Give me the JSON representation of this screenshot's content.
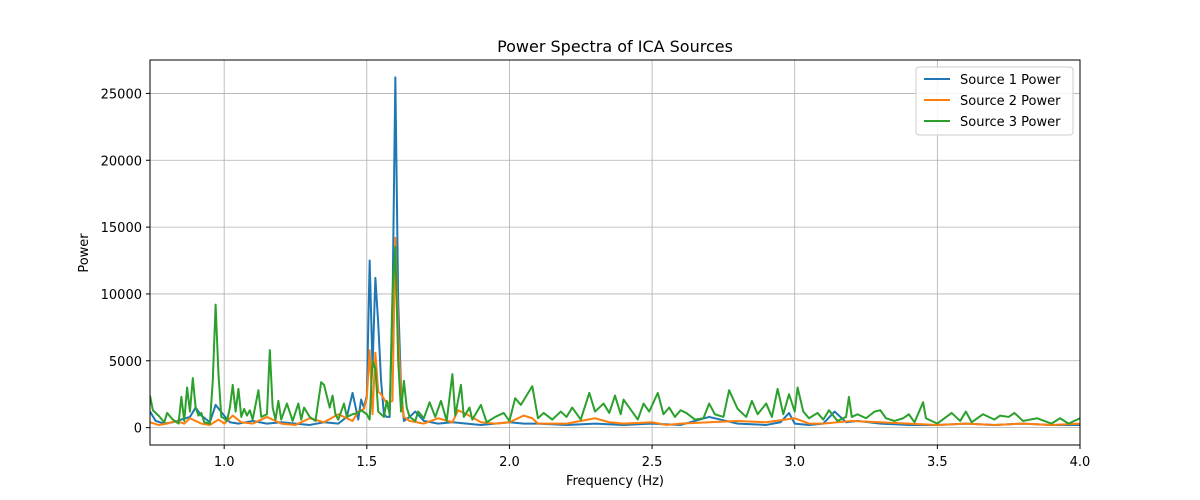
{
  "chart_data": {
    "type": "line",
    "title": "Power Spectra of ICA Sources",
    "xlabel": "Frequency (Hz)",
    "ylabel": "Power",
    "xlim": [
      0.74,
      4.0
    ],
    "ylim": [
      -1300,
      27500
    ],
    "xticks": [
      1.0,
      1.5,
      2.0,
      2.5,
      3.0,
      3.5,
      4.0
    ],
    "xtick_labels": [
      "1.0",
      "1.5",
      "2.0",
      "2.5",
      "3.0",
      "3.5",
      "4.0"
    ],
    "yticks": [
      0,
      5000,
      10000,
      15000,
      20000,
      25000
    ],
    "ytick_labels": [
      "0",
      "5000",
      "10000",
      "15000",
      "20000",
      "25000"
    ],
    "grid": true,
    "legend_position": "top-right",
    "series": [
      {
        "name": "Source 1 Power",
        "color": "#1f77b4",
        "points": [
          [
            0.74,
            1200
          ],
          [
            0.76,
            500
          ],
          [
            0.79,
            300
          ],
          [
            0.82,
            400
          ],
          [
            0.85,
            600
          ],
          [
            0.88,
            800
          ],
          [
            0.9,
            1500
          ],
          [
            0.92,
            900
          ],
          [
            0.95,
            400
          ],
          [
            0.97,
            1700
          ],
          [
            1.0,
            900
          ],
          [
            1.02,
            400
          ],
          [
            1.05,
            300
          ],
          [
            1.1,
            500
          ],
          [
            1.15,
            300
          ],
          [
            1.2,
            400
          ],
          [
            1.25,
            300
          ],
          [
            1.3,
            200
          ],
          [
            1.35,
            400
          ],
          [
            1.4,
            300
          ],
          [
            1.43,
            800
          ],
          [
            1.45,
            2600
          ],
          [
            1.47,
            600
          ],
          [
            1.48,
            2100
          ],
          [
            1.49,
            1500
          ],
          [
            1.5,
            2400
          ],
          [
            1.51,
            12500
          ],
          [
            1.52,
            4500
          ],
          [
            1.53,
            11200
          ],
          [
            1.54,
            7800
          ],
          [
            1.55,
            3500
          ],
          [
            1.56,
            1000
          ],
          [
            1.57,
            800
          ],
          [
            1.58,
            800
          ],
          [
            1.59,
            9000
          ],
          [
            1.6,
            26200
          ],
          [
            1.61,
            9500
          ],
          [
            1.62,
            3000
          ],
          [
            1.63,
            500
          ],
          [
            1.65,
            800
          ],
          [
            1.67,
            1200
          ],
          [
            1.7,
            500
          ],
          [
            1.75,
            300
          ],
          [
            1.8,
            400
          ],
          [
            1.85,
            300
          ],
          [
            1.9,
            200
          ],
          [
            1.95,
            300
          ],
          [
            2.0,
            400
          ],
          [
            2.05,
            300
          ],
          [
            2.1,
            300
          ],
          [
            2.2,
            200
          ],
          [
            2.3,
            300
          ],
          [
            2.4,
            200
          ],
          [
            2.5,
            300
          ],
          [
            2.6,
            200
          ],
          [
            2.7,
            800
          ],
          [
            2.8,
            300
          ],
          [
            2.9,
            200
          ],
          [
            2.95,
            400
          ],
          [
            2.98,
            1100
          ],
          [
            3.0,
            300
          ],
          [
            3.05,
            200
          ],
          [
            3.1,
            300
          ],
          [
            3.14,
            1200
          ],
          [
            3.18,
            400
          ],
          [
            3.22,
            500
          ],
          [
            3.3,
            300
          ],
          [
            3.4,
            200
          ],
          [
            3.5,
            200
          ],
          [
            3.6,
            300
          ],
          [
            3.7,
            200
          ],
          [
            3.8,
            300
          ],
          [
            3.9,
            200
          ],
          [
            4.0,
            200
          ]
        ]
      },
      {
        "name": "Source 2 Power",
        "color": "#ff7f0e",
        "points": [
          [
            0.74,
            400
          ],
          [
            0.77,
            200
          ],
          [
            0.8,
            300
          ],
          [
            0.83,
            500
          ],
          [
            0.86,
            300
          ],
          [
            0.88,
            700
          ],
          [
            0.9,
            500
          ],
          [
            0.92,
            300
          ],
          [
            0.95,
            200
          ],
          [
            0.98,
            600
          ],
          [
            1.0,
            300
          ],
          [
            1.03,
            900
          ],
          [
            1.06,
            400
          ],
          [
            1.1,
            300
          ],
          [
            1.15,
            800
          ],
          [
            1.2,
            300
          ],
          [
            1.25,
            200
          ],
          [
            1.3,
            700
          ],
          [
            1.35,
            400
          ],
          [
            1.4,
            1000
          ],
          [
            1.45,
            500
          ],
          [
            1.47,
            1200
          ],
          [
            1.49,
            1400
          ],
          [
            1.5,
            2200
          ],
          [
            1.51,
            5800
          ],
          [
            1.52,
            1000
          ],
          [
            1.53,
            5600
          ],
          [
            1.54,
            2700
          ],
          [
            1.55,
            2500
          ],
          [
            1.57,
            1800
          ],
          [
            1.59,
            2000
          ],
          [
            1.6,
            14200
          ],
          [
            1.61,
            7000
          ],
          [
            1.62,
            2500
          ],
          [
            1.63,
            800
          ],
          [
            1.65,
            500
          ],
          [
            1.7,
            300
          ],
          [
            1.75,
            700
          ],
          [
            1.8,
            400
          ],
          [
            1.82,
            1300
          ],
          [
            1.85,
            1000
          ],
          [
            1.9,
            400
          ],
          [
            1.95,
            300
          ],
          [
            2.0,
            400
          ],
          [
            2.05,
            900
          ],
          [
            2.08,
            700
          ],
          [
            2.1,
            300
          ],
          [
            2.2,
            300
          ],
          [
            2.3,
            700
          ],
          [
            2.35,
            400
          ],
          [
            2.4,
            300
          ],
          [
            2.5,
            400
          ],
          [
            2.55,
            200
          ],
          [
            2.6,
            300
          ],
          [
            2.7,
            400
          ],
          [
            2.8,
            500
          ],
          [
            2.9,
            400
          ],
          [
            3.0,
            700
          ],
          [
            3.05,
            300
          ],
          [
            3.1,
            300
          ],
          [
            3.2,
            500
          ],
          [
            3.3,
            400
          ],
          [
            3.4,
            300
          ],
          [
            3.5,
            200
          ],
          [
            3.6,
            300
          ],
          [
            3.7,
            200
          ],
          [
            3.8,
            300
          ],
          [
            3.9,
            200
          ],
          [
            4.0,
            300
          ]
        ]
      },
      {
        "name": "Source 3 Power",
        "color": "#2ca02c",
        "points": [
          [
            0.74,
            2400
          ],
          [
            0.75,
            1300
          ],
          [
            0.77,
            900
          ],
          [
            0.79,
            400
          ],
          [
            0.8,
            1100
          ],
          [
            0.82,
            600
          ],
          [
            0.84,
            300
          ],
          [
            0.85,
            2300
          ],
          [
            0.86,
            500
          ],
          [
            0.87,
            3000
          ],
          [
            0.88,
            1200
          ],
          [
            0.89,
            3700
          ],
          [
            0.9,
            1500
          ],
          [
            0.91,
            900
          ],
          [
            0.92,
            1100
          ],
          [
            0.93,
            400
          ],
          [
            0.95,
            300
          ],
          [
            0.96,
            3500
          ],
          [
            0.97,
            9200
          ],
          [
            0.98,
            4000
          ],
          [
            0.99,
            800
          ],
          [
            1.0,
            700
          ],
          [
            1.01,
            500
          ],
          [
            1.02,
            1500
          ],
          [
            1.03,
            3200
          ],
          [
            1.04,
            1200
          ],
          [
            1.05,
            2900
          ],
          [
            1.06,
            800
          ],
          [
            1.07,
            1400
          ],
          [
            1.08,
            900
          ],
          [
            1.09,
            1300
          ],
          [
            1.1,
            600
          ],
          [
            1.12,
            2800
          ],
          [
            1.13,
            800
          ],
          [
            1.15,
            1000
          ],
          [
            1.16,
            5800
          ],
          [
            1.17,
            1500
          ],
          [
            1.18,
            600
          ],
          [
            1.19,
            2000
          ],
          [
            1.2,
            600
          ],
          [
            1.22,
            1800
          ],
          [
            1.24,
            500
          ],
          [
            1.26,
            1800
          ],
          [
            1.27,
            600
          ],
          [
            1.28,
            1500
          ],
          [
            1.3,
            800
          ],
          [
            1.32,
            500
          ],
          [
            1.34,
            3400
          ],
          [
            1.35,
            3200
          ],
          [
            1.37,
            1500
          ],
          [
            1.38,
            2400
          ],
          [
            1.39,
            1000
          ],
          [
            1.4,
            600
          ],
          [
            1.42,
            1800
          ],
          [
            1.43,
            800
          ],
          [
            1.45,
            1000
          ],
          [
            1.47,
            1100
          ],
          [
            1.48,
            1300
          ],
          [
            1.5,
            1000
          ],
          [
            1.51,
            600
          ],
          [
            1.52,
            5000
          ],
          [
            1.53,
            4400
          ],
          [
            1.54,
            1200
          ],
          [
            1.55,
            1000
          ],
          [
            1.56,
            800
          ],
          [
            1.57,
            2000
          ],
          [
            1.58,
            1000
          ],
          [
            1.59,
            10000
          ],
          [
            1.6,
            13500
          ],
          [
            1.61,
            5000
          ],
          [
            1.62,
            1200
          ],
          [
            1.63,
            3500
          ],
          [
            1.64,
            1500
          ],
          [
            1.65,
            800
          ],
          [
            1.67,
            500
          ],
          [
            1.68,
            1200
          ],
          [
            1.7,
            700
          ],
          [
            1.72,
            1900
          ],
          [
            1.74,
            800
          ],
          [
            1.76,
            2000
          ],
          [
            1.78,
            500
          ],
          [
            1.8,
            4000
          ],
          [
            1.81,
            900
          ],
          [
            1.83,
            3200
          ],
          [
            1.84,
            800
          ],
          [
            1.86,
            1500
          ],
          [
            1.87,
            600
          ],
          [
            1.9,
            1700
          ],
          [
            1.92,
            400
          ],
          [
            1.95,
            800
          ],
          [
            1.98,
            1100
          ],
          [
            2.0,
            500
          ],
          [
            2.02,
            2200
          ],
          [
            2.04,
            1700
          ],
          [
            2.06,
            2400
          ],
          [
            2.08,
            3100
          ],
          [
            2.1,
            700
          ],
          [
            2.12,
            1100
          ],
          [
            2.15,
            600
          ],
          [
            2.18,
            1200
          ],
          [
            2.2,
            800
          ],
          [
            2.22,
            1500
          ],
          [
            2.25,
            600
          ],
          [
            2.28,
            2600
          ],
          [
            2.3,
            1200
          ],
          [
            2.33,
            1800
          ],
          [
            2.35,
            1100
          ],
          [
            2.37,
            2400
          ],
          [
            2.39,
            1000
          ],
          [
            2.4,
            2100
          ],
          [
            2.42,
            1500
          ],
          [
            2.45,
            600
          ],
          [
            2.47,
            1800
          ],
          [
            2.49,
            1200
          ],
          [
            2.52,
            2600
          ],
          [
            2.54,
            1000
          ],
          [
            2.56,
            1500
          ],
          [
            2.58,
            800
          ],
          [
            2.6,
            1300
          ],
          [
            2.62,
            1100
          ],
          [
            2.65,
            600
          ],
          [
            2.68,
            700
          ],
          [
            2.7,
            1800
          ],
          [
            2.72,
            1000
          ],
          [
            2.75,
            800
          ],
          [
            2.77,
            2800
          ],
          [
            2.8,
            1400
          ],
          [
            2.83,
            800
          ],
          [
            2.85,
            2000
          ],
          [
            2.87,
            1000
          ],
          [
            2.9,
            1800
          ],
          [
            2.92,
            800
          ],
          [
            2.94,
            2900
          ],
          [
            2.96,
            1000
          ],
          [
            2.98,
            2500
          ],
          [
            3.0,
            1200
          ],
          [
            3.01,
            3000
          ],
          [
            3.03,
            1200
          ],
          [
            3.05,
            700
          ],
          [
            3.08,
            1100
          ],
          [
            3.1,
            600
          ],
          [
            3.12,
            1300
          ],
          [
            3.15,
            500
          ],
          [
            3.18,
            800
          ],
          [
            3.19,
            2300
          ],
          [
            3.2,
            800
          ],
          [
            3.22,
            1000
          ],
          [
            3.25,
            700
          ],
          [
            3.28,
            1200
          ],
          [
            3.3,
            1300
          ],
          [
            3.32,
            700
          ],
          [
            3.35,
            500
          ],
          [
            3.38,
            700
          ],
          [
            3.4,
            1000
          ],
          [
            3.42,
            400
          ],
          [
            3.45,
            1900
          ],
          [
            3.46,
            700
          ],
          [
            3.5,
            300
          ],
          [
            3.55,
            1100
          ],
          [
            3.58,
            500
          ],
          [
            3.6,
            1200
          ],
          [
            3.62,
            400
          ],
          [
            3.66,
            1000
          ],
          [
            3.7,
            600
          ],
          [
            3.72,
            900
          ],
          [
            3.75,
            800
          ],
          [
            3.77,
            1100
          ],
          [
            3.8,
            500
          ],
          [
            3.85,
            700
          ],
          [
            3.9,
            300
          ],
          [
            3.93,
            700
          ],
          [
            3.96,
            300
          ],
          [
            4.0,
            700
          ]
        ]
      }
    ]
  }
}
